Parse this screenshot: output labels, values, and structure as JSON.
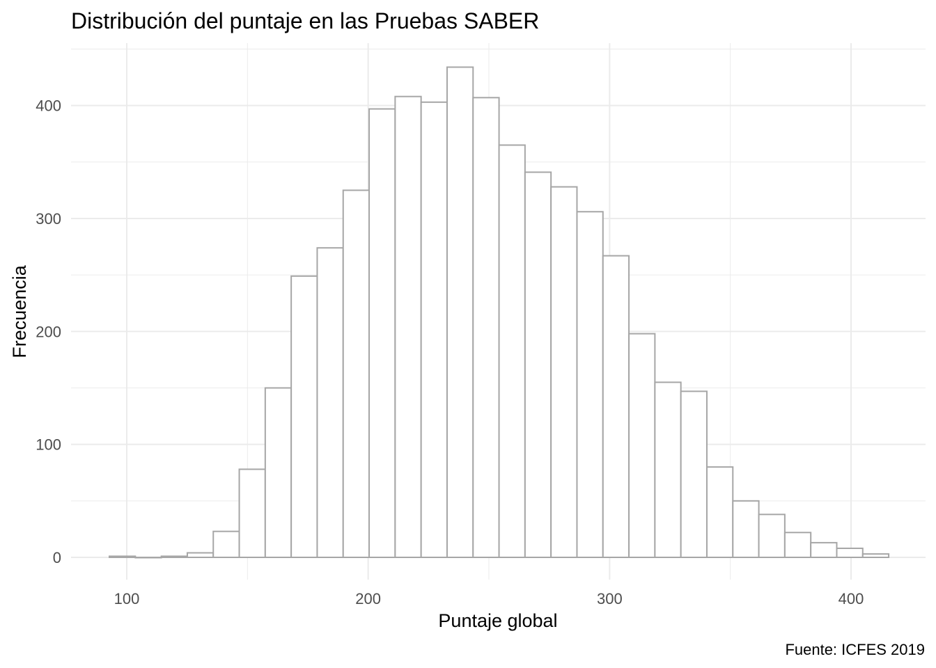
{
  "chart_data": {
    "type": "bar",
    "subtype": "histogram",
    "title": "Distribución del puntaje en las Pruebas SABER",
    "xlabel": "Puntaje global",
    "ylabel": "Frecuencia",
    "caption": "Fuente: ICFES 2019",
    "xlim": [
      82,
      436
    ],
    "ylim": [
      -20,
      452
    ],
    "x_ticks": [
      "100",
      "200",
      "300",
      "400"
    ],
    "y_ticks": [
      "0",
      "100",
      "200",
      "300",
      "400"
    ],
    "grid": true,
    "bin_start": 92.8,
    "bin_width": 10.76,
    "values": [
      1,
      0,
      1,
      4,
      23,
      78,
      150,
      249,
      274,
      325,
      397,
      408,
      403,
      434,
      407,
      365,
      341,
      328,
      306,
      267,
      198,
      155,
      147,
      80,
      50,
      38,
      22,
      13,
      8,
      3
    ],
    "bar_fill": "#ffffff",
    "bar_stroke": "#a6a6a6",
    "grid_color": "#ebebeb"
  }
}
